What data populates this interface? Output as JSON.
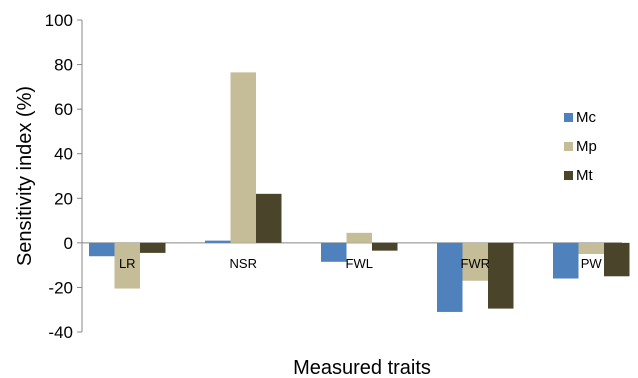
{
  "chart_data": {
    "type": "bar",
    "title": "",
    "xlabel": "Measured traits",
    "ylabel": "Sensitivity index (%)",
    "ylim": [
      -40,
      100
    ],
    "yticks": [
      -40,
      -20,
      0,
      20,
      40,
      60,
      80,
      100
    ],
    "grid": false,
    "legend_position": "right",
    "categories": [
      "LR",
      "NSR",
      "FWL",
      "FWR",
      "PW"
    ],
    "series": [
      {
        "name": "Mc",
        "color": "#4f81bd",
        "values": [
          -6,
          1,
          -8.5,
          -31,
          -16
        ]
      },
      {
        "name": "Mp",
        "color": "#c4bd97",
        "values": [
          -20.5,
          76.5,
          4.5,
          -17,
          -5
        ]
      },
      {
        "name": "Mt",
        "color": "#4a452a",
        "values": [
          -4.5,
          22,
          -3.5,
          -29.5,
          -15
        ]
      }
    ]
  }
}
